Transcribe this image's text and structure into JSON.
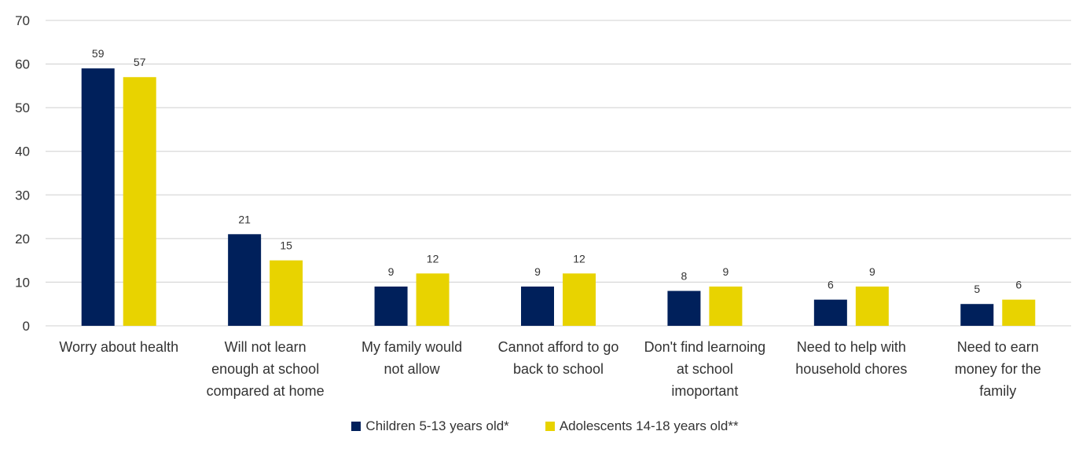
{
  "chart_data": {
    "type": "bar",
    "categories": [
      [
        "Worry about health"
      ],
      [
        "Will not learn",
        "enough at school",
        "compared at home"
      ],
      [
        "My family would",
        "not allow"
      ],
      [
        "Cannot afford to go",
        "back to school"
      ],
      [
        "Don't find learnoing",
        "at school",
        "imoportant"
      ],
      [
        "Need to help with",
        "household chores"
      ],
      [
        "Need to earn",
        "money for the",
        "family"
      ]
    ],
    "series": [
      {
        "name": "Children 5-13 years old*",
        "color": "#00205B",
        "values": [
          59,
          21,
          9,
          9,
          8,
          6,
          5
        ]
      },
      {
        "name": "Adolescents 14-18 years old**",
        "color": "#E8D300",
        "values": [
          57,
          15,
          12,
          12,
          9,
          9,
          6
        ]
      }
    ],
    "ylim": [
      0,
      70
    ],
    "yticks": [
      0,
      10,
      20,
      30,
      40,
      50,
      60,
      70
    ],
    "grid": true,
    "legend_position": "bottom",
    "data_labels": true
  }
}
